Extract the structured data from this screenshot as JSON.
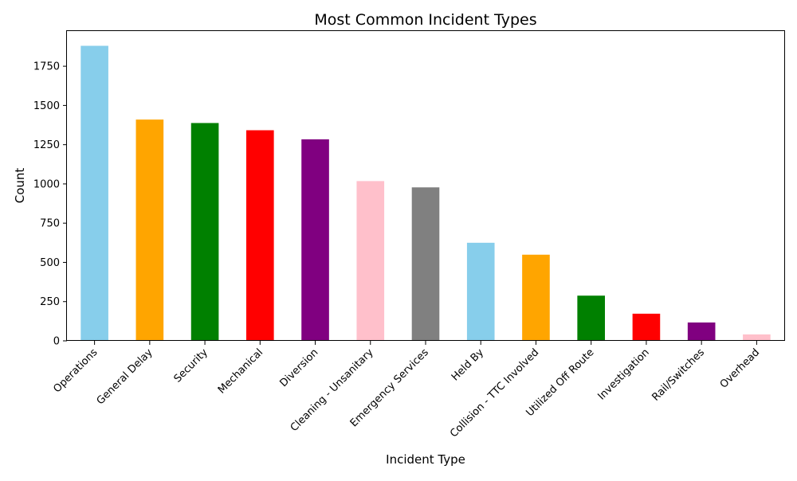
{
  "chart_data": {
    "type": "bar",
    "title": "Most Common Incident Types",
    "xlabel": "Incident Type",
    "ylabel": "Count",
    "categories": [
      "Operations",
      "General Delay",
      "Security",
      "Mechanical",
      "Diversion",
      "Cleaning - Unsanitary",
      "Emergency Services",
      "Held By",
      "Collision - TTC Involved",
      "Utilized Off Route",
      "Investigation",
      "Rail/Switches",
      "Overhead"
    ],
    "values": [
      1880,
      1410,
      1388,
      1342,
      1284,
      1018,
      978,
      625,
      549,
      288,
      173,
      117,
      41
    ],
    "colors": [
      "#87CEEB",
      "#FFA500",
      "#008000",
      "#FF0000",
      "#800080",
      "#FFC0CB",
      "#808080",
      "#87CEEB",
      "#FFA500",
      "#008000",
      "#FF0000",
      "#800080",
      "#FFC0CB"
    ],
    "ylim": [
      0,
      1974
    ],
    "yticks": [
      0,
      250,
      500,
      750,
      1000,
      1250,
      1500,
      1750
    ],
    "grid": false,
    "legend": "none"
  }
}
